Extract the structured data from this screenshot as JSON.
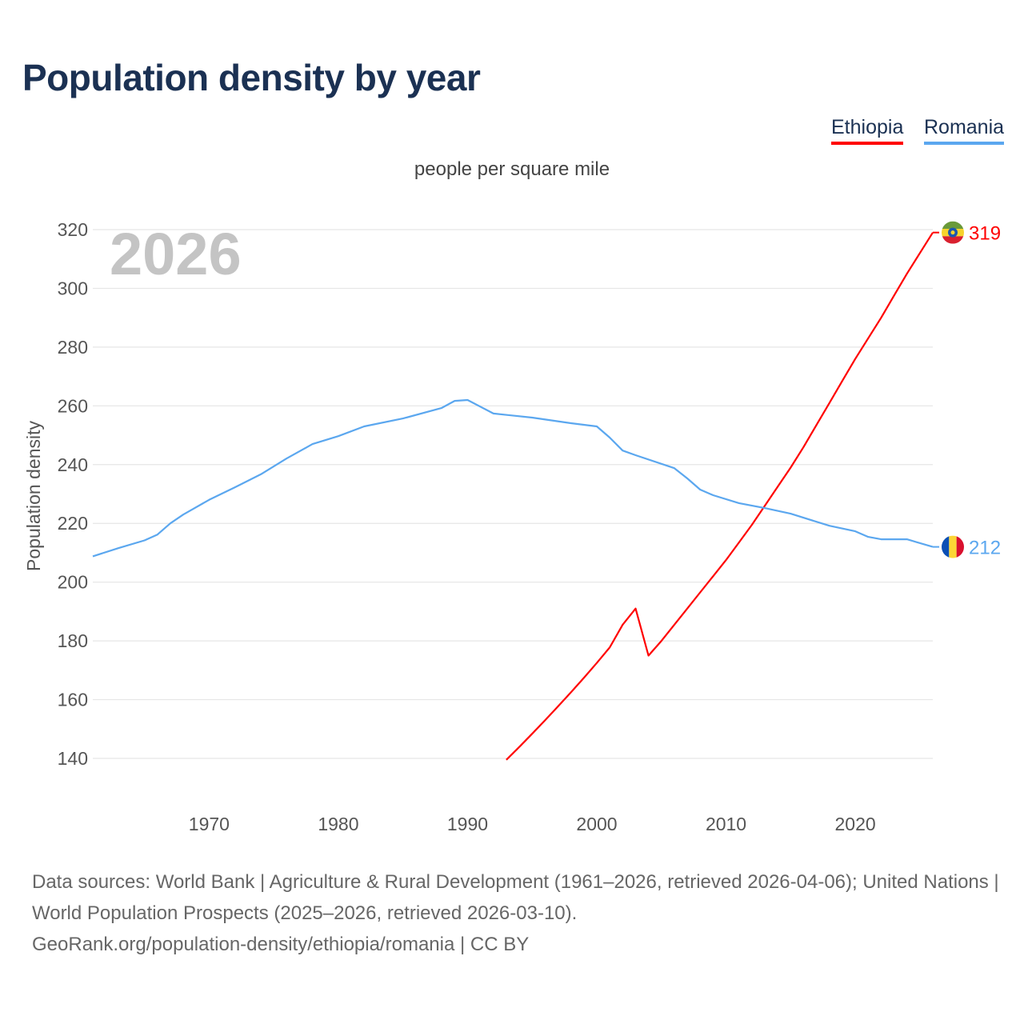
{
  "title": "Population density by year",
  "legend": [
    {
      "name": "Ethiopia",
      "color": "#ff0000"
    },
    {
      "name": "Romania",
      "color": "#5ba7ef"
    }
  ],
  "subtitle": "people per square mile",
  "year_watermark": "2026",
  "chart_data": {
    "type": "line",
    "title": "Population density by year",
    "ylabel": "Population density",
    "xlabel": "",
    "unit": "people per square mile",
    "xlim": [
      1961,
      2026
    ],
    "ylim": [
      140,
      320
    ],
    "yticks": [
      140,
      160,
      180,
      200,
      220,
      240,
      260,
      280,
      300,
      320
    ],
    "xticks": [
      1970,
      1980,
      1990,
      2000,
      2010,
      2020
    ],
    "grid": true,
    "legend_position": "top-right",
    "series": [
      {
        "name": "Ethiopia",
        "color": "#ff0000",
        "end_label": "319",
        "flag": "ethiopia-flag",
        "points": [
          [
            1993,
            139.5
          ],
          [
            1994,
            143.9
          ],
          [
            1995,
            148.4
          ],
          [
            1996,
            153
          ],
          [
            1997,
            157.7
          ],
          [
            1998,
            162.5
          ],
          [
            1999,
            167.4
          ],
          [
            2000,
            172.5
          ],
          [
            2001,
            177.8
          ],
          [
            2002,
            185.5
          ],
          [
            2003,
            191
          ],
          [
            2004,
            175
          ],
          [
            2005,
            180
          ],
          [
            2006,
            185.5
          ],
          [
            2007,
            191
          ],
          [
            2008,
            196.5
          ],
          [
            2009,
            202
          ],
          [
            2010,
            207.5
          ],
          [
            2011,
            213.5
          ],
          [
            2012,
            219.5
          ],
          [
            2013,
            226
          ],
          [
            2014,
            232.5
          ],
          [
            2015,
            239
          ],
          [
            2016,
            246
          ],
          [
            2017,
            253.5
          ],
          [
            2018,
            261
          ],
          [
            2019,
            268.5
          ],
          [
            2020,
            276
          ],
          [
            2021,
            283
          ],
          [
            2022,
            290
          ],
          [
            2023,
            297.5
          ],
          [
            2024,
            305
          ],
          [
            2025,
            312
          ],
          [
            2026,
            319
          ]
        ]
      },
      {
        "name": "Romania",
        "color": "#5ba7ef",
        "end_label": "212",
        "flag": "romania-flag",
        "points": [
          [
            1961,
            208.8
          ],
          [
            1963,
            211.6
          ],
          [
            1965,
            214.2
          ],
          [
            1966,
            216.2
          ],
          [
            1967,
            220
          ],
          [
            1968,
            223
          ],
          [
            1970,
            228
          ],
          [
            1972,
            232.3
          ],
          [
            1974,
            236.7
          ],
          [
            1976,
            242.1
          ],
          [
            1978,
            247
          ],
          [
            1980,
            249.7
          ],
          [
            1982,
            253
          ],
          [
            1985,
            255.7
          ],
          [
            1988,
            259.3
          ],
          [
            1989,
            261.7
          ],
          [
            1990,
            262
          ],
          [
            1992,
            257.4
          ],
          [
            1995,
            256
          ],
          [
            1998,
            254.1
          ],
          [
            2000,
            253
          ],
          [
            2001,
            249.2
          ],
          [
            2002,
            244.8
          ],
          [
            2003,
            243.2
          ],
          [
            2006,
            238.8
          ],
          [
            2007,
            235.3
          ],
          [
            2008,
            231.5
          ],
          [
            2009,
            229.6
          ],
          [
            2011,
            226.9
          ],
          [
            2013,
            225.2
          ],
          [
            2015,
            223.3
          ],
          [
            2018,
            219.2
          ],
          [
            2020,
            217.3
          ],
          [
            2021,
            215.4
          ],
          [
            2022,
            214.6
          ],
          [
            2024,
            214.6
          ],
          [
            2026,
            212
          ]
        ]
      }
    ]
  },
  "footer": {
    "sources": "Data sources: World Bank | Agriculture & Rural Development (1961–2026, retrieved 2026-04-06); United Nations | World Population Prospects (2025–2026, retrieved 2026-03-10).",
    "link": "GeoRank.org/population-density/ethiopia/romania | CC BY"
  }
}
